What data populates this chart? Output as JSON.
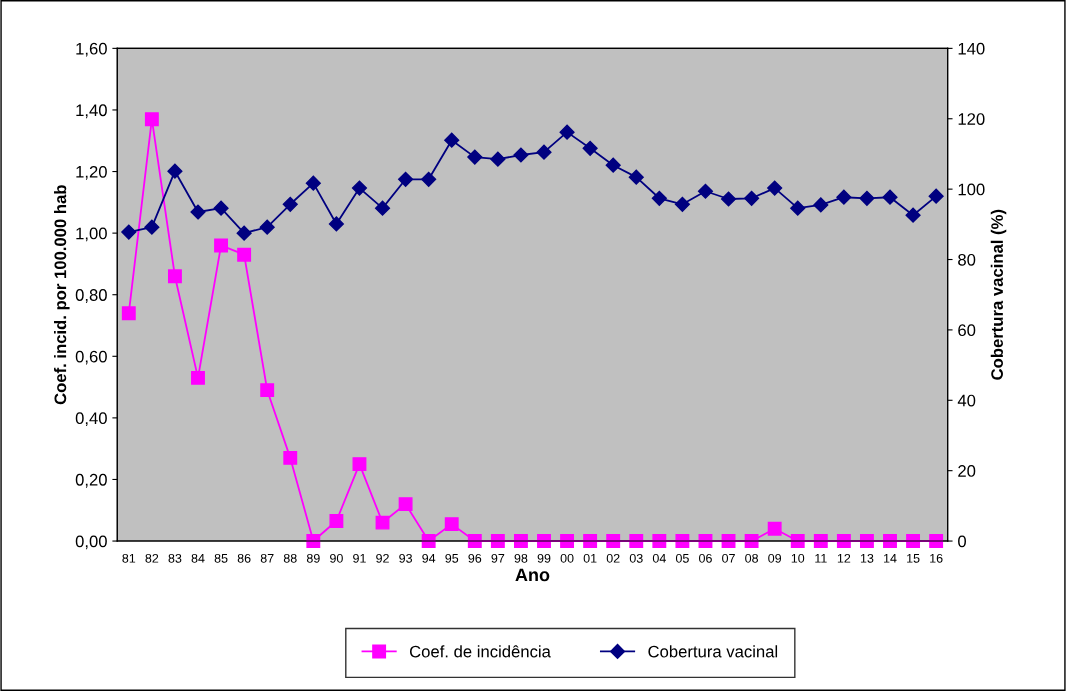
{
  "chart_data": {
    "type": "line",
    "xlabel": "Ano",
    "ylabel": "Coef. incid. por 100.000 hab",
    "y2label": "Cobertura vacinal (%)",
    "categories": [
      "81",
      "82",
      "83",
      "84",
      "85",
      "86",
      "87",
      "88",
      "89",
      "90",
      "91",
      "92",
      "93",
      "94",
      "95",
      "96",
      "97",
      "98",
      "99",
      "00",
      "01",
      "02",
      "03",
      "04",
      "05",
      "06",
      "07",
      "08",
      "09",
      "10",
      "11",
      "12",
      "13",
      "14",
      "15",
      "16"
    ],
    "series": [
      {
        "name": "Coef. de incidência",
        "color": "#ff00ff",
        "marker": "square",
        "values": [
          0.74,
          1.37,
          0.86,
          0.53,
          0.96,
          0.93,
          0.49,
          0.27,
          0,
          0.065,
          0.25,
          0.06,
          0.12,
          0,
          0.055,
          0,
          0,
          0,
          0,
          0,
          0,
          0,
          0,
          0,
          0,
          0,
          0,
          0,
          0.04,
          0,
          0,
          0,
          0,
          0,
          0,
          0
        ]
      },
      {
        "name": "Cobertura vacinal",
        "color": "#000080",
        "marker": "diamond",
        "axis": "y2",
        "values": [
          87.8,
          89.2,
          105.1,
          93.5,
          94.6,
          87.5,
          89.2,
          95.7,
          101.7,
          90.1,
          100.3,
          94.6,
          102.8,
          102.8,
          113.9,
          109.1,
          108.5,
          109.7,
          110.5,
          116.2,
          111.6,
          106.8,
          103.4,
          97.4,
          95.7,
          99.4,
          97.2,
          97.4,
          100.3,
          94.6,
          95.5,
          97.7,
          97.4,
          97.7,
          92.6,
          98.0
        ]
      }
    ],
    "ylim": [
      0,
      1.6
    ],
    "yticks": [
      {
        "value": 0,
        "label": "0,00"
      },
      {
        "value": 0.2,
        "label": "0,20"
      },
      {
        "value": 0.4,
        "label": "0,40"
      },
      {
        "value": 0.6,
        "label": "0,60"
      },
      {
        "value": 0.8,
        "label": "0,80"
      },
      {
        "value": 1.0,
        "label": "1,00"
      },
      {
        "value": 1.2,
        "label": "1,20"
      },
      {
        "value": 1.4,
        "label": "1,40"
      },
      {
        "value": 1.6,
        "label": "1,60"
      }
    ],
    "y2lim": [
      0,
      140
    ],
    "y2ticks": [
      0,
      20,
      40,
      60,
      80,
      100,
      120,
      140
    ],
    "grid": false,
    "legend": "bottom",
    "line_style": "solid"
  }
}
